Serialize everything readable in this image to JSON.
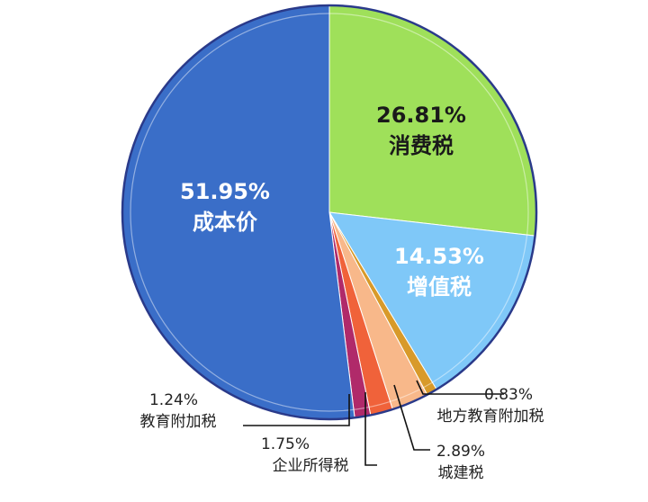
{
  "chart_data": {
    "type": "pie",
    "title": "",
    "slices": [
      {
        "label": "消费税",
        "value": 26.81,
        "display": "26.81%",
        "color": "#9fe05a",
        "label_color": "#1a1a1a"
      },
      {
        "label": "增值税",
        "value": 14.53,
        "display": "14.53%",
        "color": "#7fc8f8",
        "label_color": "#ffffff"
      },
      {
        "label": "地方教育附加税",
        "value": 0.83,
        "display": "0.83%",
        "color": "#d89a2a",
        "label_color": "#222222"
      },
      {
        "label": "城建税",
        "value": 2.89,
        "display": "2.89%",
        "color": "#f8b88a",
        "label_color": "#222222"
      },
      {
        "label": "企业所得税",
        "value": 1.75,
        "display": "1.75%",
        "color": "#f0623a",
        "label_color": "#222222"
      },
      {
        "label": "教育附加税",
        "value": 1.24,
        "display": "1.24%",
        "color": "#b02a6a",
        "label_color": "#222222"
      },
      {
        "label": "成本价",
        "value": 51.95,
        "display": "51.95%",
        "color": "#3a6ec8",
        "label_color": "#ffffff"
      }
    ],
    "legend": "none",
    "start_angle": "12 o'clock",
    "direction": "clockwise"
  }
}
